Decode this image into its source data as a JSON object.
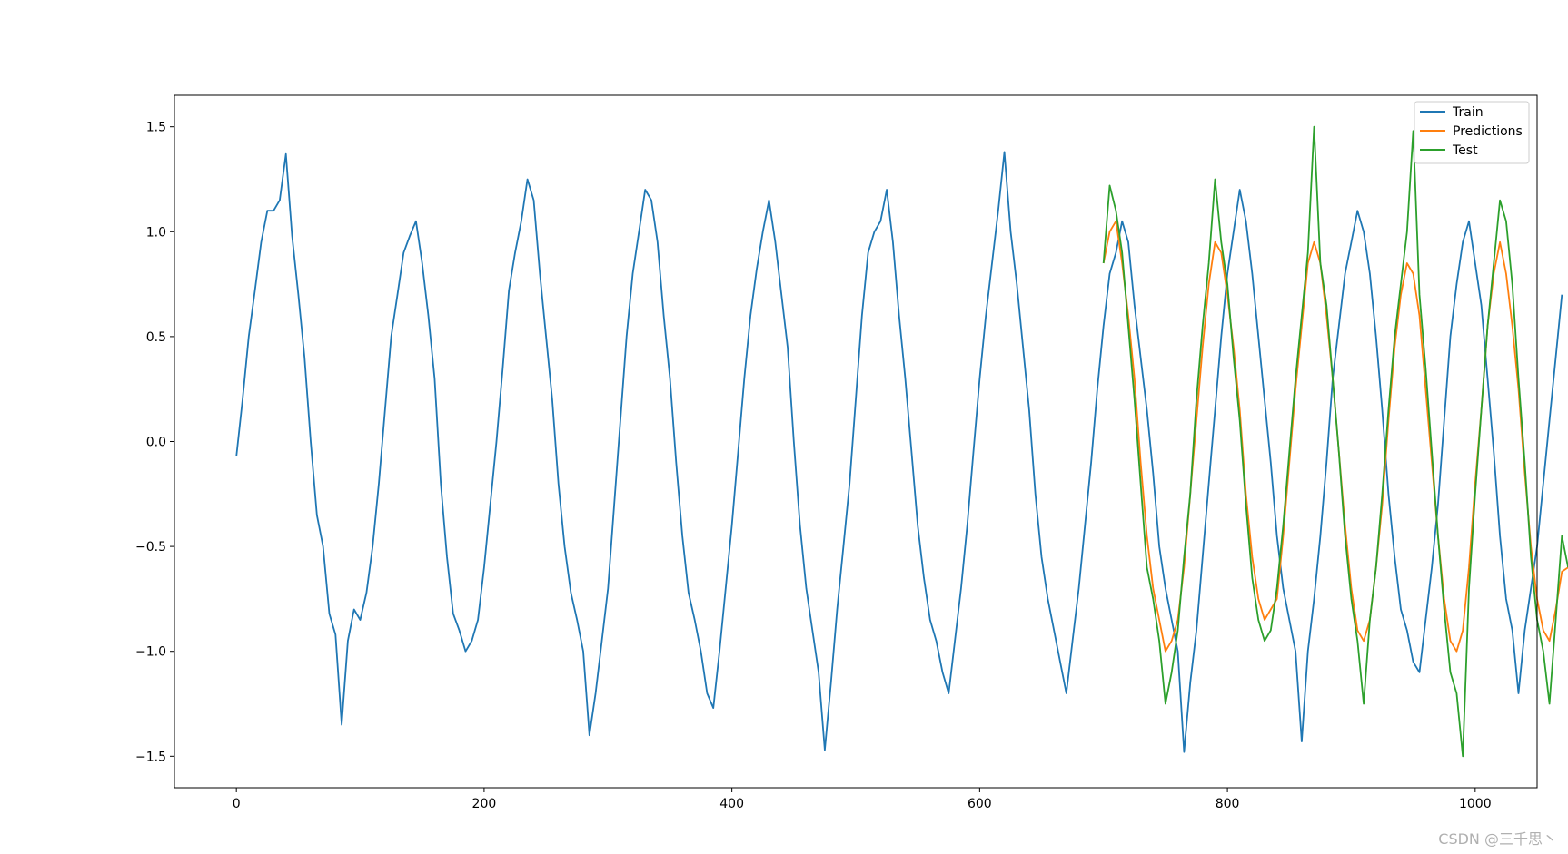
{
  "chart_data": {
    "type": "line",
    "x_ticks": [
      0,
      200,
      400,
      600,
      800,
      1000
    ],
    "y_ticks": [
      -1.5,
      -1.0,
      -0.5,
      0.0,
      0.5,
      1.0,
      1.5
    ],
    "x_tick_labels": [
      "0",
      "200",
      "400",
      "600",
      "800",
      "1000"
    ],
    "y_tick_labels": [
      "−1.5",
      "−1.0",
      "−0.5",
      "0.0",
      "0.5",
      "1.0",
      "1.5"
    ],
    "xlim": [
      -50,
      1050
    ],
    "ylim": [
      -1.65,
      1.65
    ],
    "grid": false,
    "legend_position": "top-right",
    "series": [
      {
        "name": "Train",
        "color": "#1f77b4",
        "x_start": 0,
        "x_step": 5,
        "values": [
          -0.07,
          0.2,
          0.5,
          0.72,
          0.95,
          1.1,
          1.1,
          1.15,
          1.37,
          0.98,
          0.7,
          0.4,
          0.0,
          -0.35,
          -0.5,
          -0.82,
          -0.92,
          -1.35,
          -0.95,
          -0.8,
          -0.85,
          -0.72,
          -0.5,
          -0.2,
          0.15,
          0.5,
          0.7,
          0.9,
          0.98,
          1.05,
          0.85,
          0.6,
          0.3,
          -0.2,
          -0.55,
          -0.82,
          -0.9,
          -1.0,
          -0.95,
          -0.85,
          -0.6,
          -0.3,
          0.0,
          0.35,
          0.72,
          0.9,
          1.05,
          1.25,
          1.15,
          0.8,
          0.5,
          0.2,
          -0.2,
          -0.5,
          -0.72,
          -0.85,
          -1.0,
          -1.4,
          -1.2,
          -0.95,
          -0.7,
          -0.3,
          0.1,
          0.5,
          0.8,
          1.0,
          1.2,
          1.15,
          0.95,
          0.6,
          0.3,
          -0.1,
          -0.45,
          -0.72,
          -0.85,
          -1.0,
          -1.2,
          -1.27,
          -1.0,
          -0.7,
          -0.4,
          -0.05,
          0.3,
          0.6,
          0.82,
          1.0,
          1.15,
          0.95,
          0.7,
          0.45,
          0.0,
          -0.4,
          -0.7,
          -0.9,
          -1.1,
          -1.47,
          -1.15,
          -0.8,
          -0.5,
          -0.2,
          0.2,
          0.6,
          0.9,
          1.0,
          1.05,
          1.2,
          0.95,
          0.6,
          0.3,
          -0.05,
          -0.4,
          -0.65,
          -0.85,
          -0.95,
          -1.1,
          -1.2,
          -0.95,
          -0.7,
          -0.4,
          -0.05,
          0.3,
          0.6,
          0.85,
          1.1,
          1.38,
          1.0,
          0.75,
          0.45,
          0.15,
          -0.25,
          -0.55,
          -0.75,
          -0.9,
          -1.05,
          -1.2,
          -0.95,
          -0.7,
          -0.4,
          -0.1,
          0.25,
          0.55,
          0.8,
          0.9,
          1.05,
          0.95,
          0.65,
          0.4,
          0.15,
          -0.15,
          -0.5,
          -0.7,
          -0.85,
          -1.0,
          -1.48,
          -1.15,
          -0.9,
          -0.55,
          -0.2,
          0.15,
          0.5,
          0.8,
          1.0,
          1.2,
          1.05,
          0.8,
          0.5,
          0.2,
          -0.1,
          -0.45,
          -0.7,
          -0.85,
          -1.0,
          -1.43,
          -1.0,
          -0.75,
          -0.45,
          -0.1,
          0.3,
          0.55,
          0.8,
          0.95,
          1.1,
          1.0,
          0.8,
          0.5,
          0.15,
          -0.25,
          -0.55,
          -0.8,
          -0.9,
          -1.05,
          -1.1,
          -0.85,
          -0.6,
          -0.3,
          0.1,
          0.5,
          0.75,
          0.95,
          1.05,
          0.85,
          0.65,
          0.3,
          -0.05,
          -0.45,
          -0.75,
          -0.9,
          -1.2,
          -0.9,
          -0.7,
          -0.5,
          -0.2,
          0.1,
          0.4,
          0.7
        ]
      },
      {
        "name": "Predictions",
        "color": "#ff7f0e",
        "x_start": 700,
        "x_step": 5,
        "values": [
          0.85,
          1.0,
          1.05,
          0.85,
          0.6,
          0.3,
          -0.1,
          -0.45,
          -0.7,
          -0.85,
          -1.0,
          -0.95,
          -0.85,
          -0.6,
          -0.25,
          0.1,
          0.45,
          0.75,
          0.95,
          0.9,
          0.7,
          0.45,
          0.15,
          -0.25,
          -0.55,
          -0.75,
          -0.85,
          -0.8,
          -0.75,
          -0.45,
          -0.1,
          0.25,
          0.55,
          0.85,
          0.95,
          0.85,
          0.6,
          0.3,
          -0.05,
          -0.4,
          -0.7,
          -0.9,
          -0.95,
          -0.85,
          -0.6,
          -0.3,
          0.1,
          0.45,
          0.7,
          0.85,
          0.8,
          0.6,
          0.25,
          -0.1,
          -0.45,
          -0.75,
          -0.95,
          -1.0,
          -0.9,
          -0.6,
          -0.2,
          0.15,
          0.55,
          0.8,
          0.95,
          0.8,
          0.55,
          0.25,
          -0.15,
          -0.5,
          -0.75,
          -0.9,
          -0.95,
          -0.8,
          -0.62,
          -0.6
        ]
      },
      {
        "name": "Test",
        "color": "#2ca02c",
        "x_start": 700,
        "x_step": 5,
        "values": [
          0.85,
          1.22,
          1.1,
          0.9,
          0.55,
          0.2,
          -0.2,
          -0.6,
          -0.75,
          -0.95,
          -1.25,
          -1.1,
          -0.9,
          -0.55,
          -0.25,
          0.2,
          0.55,
          0.85,
          1.25,
          0.95,
          0.75,
          0.4,
          0.1,
          -0.3,
          -0.65,
          -0.85,
          -0.95,
          -0.9,
          -0.7,
          -0.4,
          -0.05,
          0.3,
          0.6,
          0.9,
          1.5,
          0.85,
          0.65,
          0.3,
          -0.05,
          -0.45,
          -0.75,
          -0.95,
          -1.25,
          -0.85,
          -0.6,
          -0.25,
          0.15,
          0.5,
          0.75,
          1.0,
          1.48,
          0.7,
          0.35,
          -0.05,
          -0.45,
          -0.8,
          -1.1,
          -1.2,
          -1.5,
          -0.7,
          -0.25,
          0.15,
          0.55,
          0.85,
          1.15,
          1.05,
          0.75,
          0.3,
          -0.1,
          -0.55,
          -0.85,
          -1.0,
          -1.25,
          -0.85,
          -0.45,
          -0.6
        ]
      }
    ]
  },
  "watermark": "CSDN @三千思丶"
}
